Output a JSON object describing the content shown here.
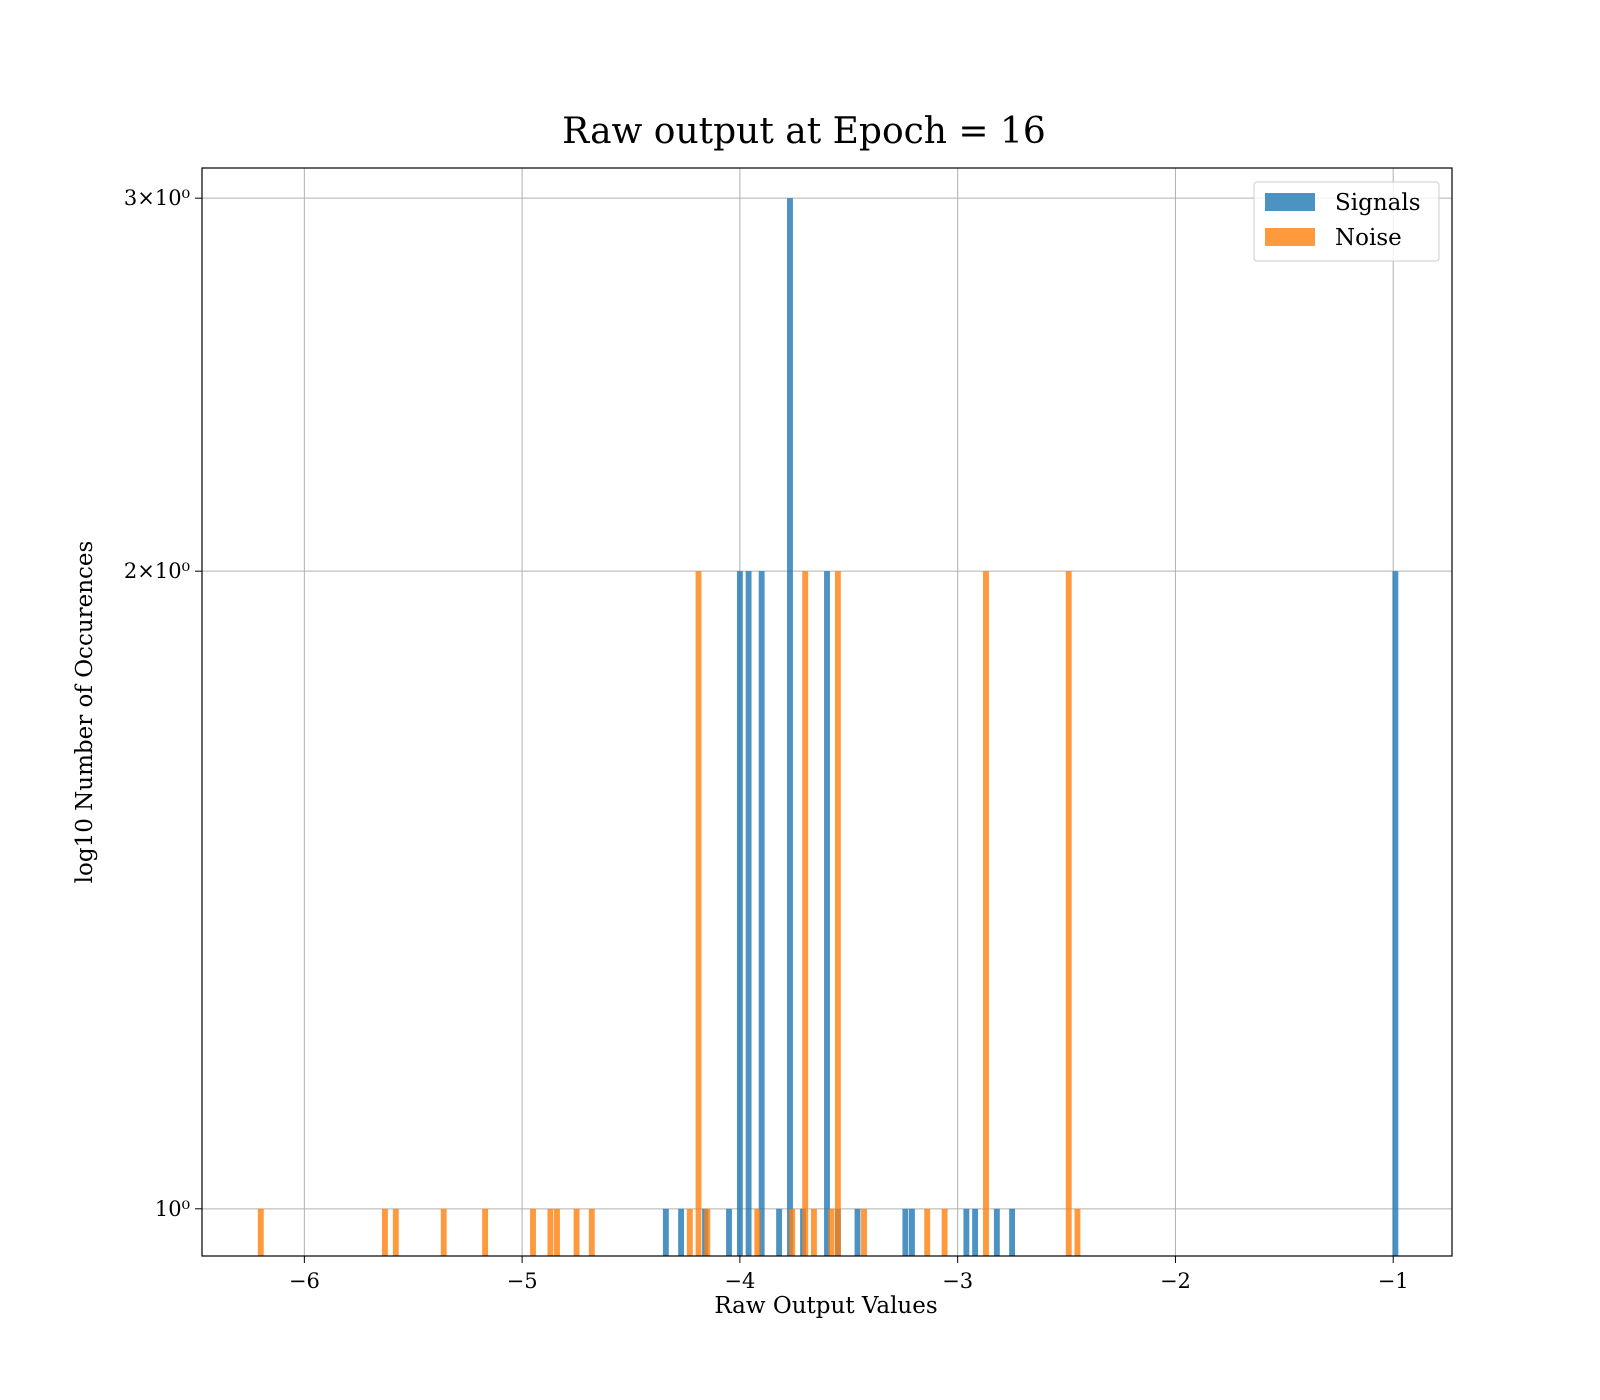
{
  "chart_data": {
    "type": "bar",
    "title": "Raw output at Epoch = 16",
    "xlabel": "Raw Output Values",
    "ylabel": "log10 Number of Occurences",
    "xlim": [
      -6.47,
      -0.73
    ],
    "ylim": [
      0.95,
      3.1
    ],
    "yscale": "log",
    "grid": true,
    "legend_position": "top-right",
    "x_ticks": [
      {
        "value": -6,
        "label": "−6"
      },
      {
        "value": -5,
        "label": "−5"
      },
      {
        "value": -4,
        "label": "−4"
      },
      {
        "value": -3,
        "label": "−3"
      },
      {
        "value": -2,
        "label": "−2"
      },
      {
        "value": -1,
        "label": "−1"
      }
    ],
    "y_ticks": [
      {
        "value": 1,
        "label": "10⁰"
      },
      {
        "value": 2,
        "label": "2×10⁰"
      },
      {
        "value": 3,
        "label": "3×10⁰"
      }
    ],
    "bin_width": 0.027,
    "series": [
      {
        "name": "Signals",
        "color": "#1f77b4",
        "bars": [
          {
            "x": -4.34,
            "count": 1
          },
          {
            "x": -4.27,
            "count": 1
          },
          {
            "x": -4.16,
            "count": 1
          },
          {
            "x": -4.05,
            "count": 1
          },
          {
            "x": -4.0,
            "count": 2
          },
          {
            "x": -3.96,
            "count": 2
          },
          {
            "x": -3.9,
            "count": 2
          },
          {
            "x": -3.82,
            "count": 1
          },
          {
            "x": -3.77,
            "count": 3
          },
          {
            "x": -3.71,
            "count": 1
          },
          {
            "x": -3.6,
            "count": 2
          },
          {
            "x": -3.55,
            "count": 1
          },
          {
            "x": -3.46,
            "count": 1
          },
          {
            "x": -3.24,
            "count": 1
          },
          {
            "x": -3.21,
            "count": 1
          },
          {
            "x": -2.96,
            "count": 1
          },
          {
            "x": -2.92,
            "count": 1
          },
          {
            "x": -2.82,
            "count": 1
          },
          {
            "x": -2.75,
            "count": 1
          },
          {
            "x": -0.99,
            "count": 2
          }
        ]
      },
      {
        "name": "Noise",
        "color": "#ff7f0e",
        "bars": [
          {
            "x": -6.2,
            "count": 1
          },
          {
            "x": -5.63,
            "count": 1
          },
          {
            "x": -5.58,
            "count": 1
          },
          {
            "x": -5.36,
            "count": 1
          },
          {
            "x": -5.17,
            "count": 1
          },
          {
            "x": -4.95,
            "count": 1
          },
          {
            "x": -4.87,
            "count": 1
          },
          {
            "x": -4.84,
            "count": 1
          },
          {
            "x": -4.75,
            "count": 1
          },
          {
            "x": -4.68,
            "count": 1
          },
          {
            "x": -4.23,
            "count": 1
          },
          {
            "x": -4.19,
            "count": 2
          },
          {
            "x": -4.15,
            "count": 1
          },
          {
            "x": -3.92,
            "count": 1
          },
          {
            "x": -3.76,
            "count": 1
          },
          {
            "x": -3.7,
            "count": 2
          },
          {
            "x": -3.66,
            "count": 1
          },
          {
            "x": -3.58,
            "count": 1
          },
          {
            "x": -3.55,
            "count": 2
          },
          {
            "x": -3.43,
            "count": 1
          },
          {
            "x": -3.14,
            "count": 1
          },
          {
            "x": -3.06,
            "count": 1
          },
          {
            "x": -2.87,
            "count": 2
          },
          {
            "x": -2.49,
            "count": 2
          },
          {
            "x": -2.45,
            "count": 1
          }
        ]
      }
    ]
  }
}
